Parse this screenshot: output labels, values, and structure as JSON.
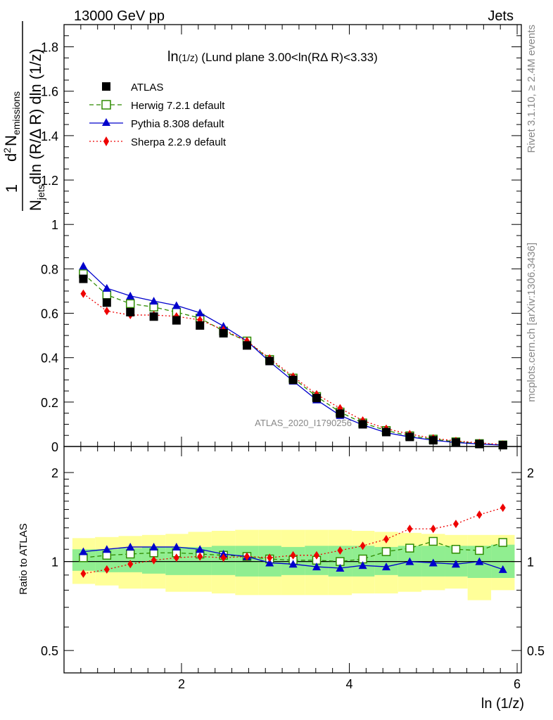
{
  "header": {
    "left": "13000 GeV pp",
    "right": "Jets",
    "side_rivet": "Rivet 3.1.10, ≥ 2.4M events",
    "side_mcplots": "mcplots.cern.ch [arXiv:1306.3436]",
    "analysis_id": "ATLAS_2020_I1790256"
  },
  "plot_title": {
    "main": "ln",
    "main_sub": "(1/z)",
    "rest": " (Lund plane 3.00<ln(RΔ R)<3.33)"
  },
  "ylabel_top": {
    "line1": "1",
    "num_d": "d",
    "num_exp": "2",
    "num_N": "N",
    "num_sub": "emissions",
    "den_N": "N",
    "den_sub": "jets",
    "den_rest": "dln (R/Δ R) dln (1/z)"
  },
  "ylabel_ratio": "Ratio to ATLAS",
  "xlabel": "ln (1/z)",
  "colors": {
    "data": "#000000",
    "herwig": "#2e8b00",
    "pythia": "#0000cc",
    "sherpa": "#ee0000",
    "band_inner": "#90ee90",
    "band_outer": "#ffff99"
  },
  "chart_data": [
    {
      "type": "line",
      "panel": "main",
      "xlim": [
        0.6,
        6.05
      ],
      "ylim": [
        0,
        1.9
      ],
      "xticks": [
        2,
        4,
        6
      ],
      "yticks": [
        0,
        0.2,
        0.4,
        0.6,
        0.8,
        1,
        1.2,
        1.4,
        1.6,
        1.8
      ],
      "ytick_labels": [
        "0",
        "0.2",
        "0.4",
        "0.6",
        "0.8",
        "1",
        "1.2",
        "1.4",
        "1.6",
        "1.8"
      ],
      "legend_position": "top-left",
      "x": [
        0.83,
        1.11,
        1.39,
        1.67,
        1.94,
        2.22,
        2.5,
        2.78,
        3.05,
        3.33,
        3.61,
        3.89,
        4.16,
        4.44,
        4.72,
        5.0,
        5.27,
        5.55,
        5.83
      ],
      "series": [
        {
          "name": "ATLAS",
          "key": "data",
          "marker": "square",
          "values": [
            0.755,
            0.648,
            0.605,
            0.585,
            0.568,
            0.545,
            0.51,
            0.455,
            0.385,
            0.3,
            0.218,
            0.148,
            0.1,
            0.065,
            0.043,
            0.028,
            0.018,
            0.011,
            0.006
          ]
        },
        {
          "name": "Herwig 7.2.1 default",
          "key": "herwig",
          "marker": "open-square",
          "dash": "6,4",
          "values": [
            0.778,
            0.683,
            0.643,
            0.628,
            0.605,
            0.578,
            0.52,
            0.475,
            0.392,
            0.308,
            0.225,
            0.155,
            0.106,
            0.072,
            0.048,
            0.033,
            0.021,
            0.013,
            0.007
          ]
        },
        {
          "name": "Pythia 8.308 default",
          "key": "pythia",
          "marker": "triangle",
          "values": [
            0.813,
            0.713,
            0.678,
            0.655,
            0.635,
            0.602,
            0.542,
            0.475,
            0.382,
            0.295,
            0.21,
            0.14,
            0.097,
            0.062,
            0.043,
            0.028,
            0.018,
            0.011,
            0.006
          ]
        },
        {
          "name": "Sherpa 2.2.9 default",
          "key": "sherpa",
          "marker": "diamond",
          "dash": "2,3",
          "values": [
            0.688,
            0.61,
            0.592,
            0.592,
            0.586,
            0.57,
            0.525,
            0.475,
            0.397,
            0.315,
            0.235,
            0.172,
            0.117,
            0.08,
            0.056,
            0.037,
            0.025,
            0.016,
            0.009
          ]
        }
      ]
    },
    {
      "type": "line",
      "panel": "ratio",
      "ylabel": "Ratio to ATLAS",
      "xlabel": "ln (1/z)",
      "yscale": "log",
      "ylim": [
        0.42,
        2.45
      ],
      "yticks": [
        0.5,
        1,
        2
      ],
      "ytick_labels": [
        "0.5",
        "1",
        "2"
      ],
      "xticks": [
        2,
        4,
        6
      ],
      "xtick_labels": [
        "2",
        "4",
        "6"
      ],
      "x": [
        0.83,
        1.11,
        1.39,
        1.67,
        1.94,
        2.22,
        2.5,
        2.78,
        3.05,
        3.33,
        3.61,
        3.89,
        4.16,
        4.44,
        4.72,
        5.0,
        5.27,
        5.55,
        5.83
      ],
      "band_edges": [
        0.7,
        0.97,
        1.25,
        1.53,
        1.81,
        2.08,
        2.36,
        2.64,
        2.92,
        3.19,
        3.47,
        3.75,
        4.03,
        4.3,
        4.58,
        4.86,
        5.14,
        5.41,
        5.69,
        5.97
      ],
      "band_inner": [
        [
          0.93,
          1.1
        ],
        [
          0.92,
          1.1
        ],
        [
          0.92,
          1.11
        ],
        [
          0.91,
          1.12
        ],
        [
          0.9,
          1.12
        ],
        [
          0.9,
          1.12
        ],
        [
          0.9,
          1.13
        ],
        [
          0.89,
          1.13
        ],
        [
          0.89,
          1.13
        ],
        [
          0.9,
          1.12
        ],
        [
          0.9,
          1.13
        ],
        [
          0.89,
          1.13
        ],
        [
          0.89,
          1.13
        ],
        [
          0.9,
          1.12
        ],
        [
          0.89,
          1.13
        ],
        [
          0.89,
          1.13
        ],
        [
          0.89,
          1.13
        ],
        [
          0.88,
          1.13
        ],
        [
          0.88,
          1.14
        ]
      ],
      "band_outer": [
        [
          0.84,
          1.2
        ],
        [
          0.83,
          1.21
        ],
        [
          0.81,
          1.22
        ],
        [
          0.81,
          1.23
        ],
        [
          0.79,
          1.24
        ],
        [
          0.79,
          1.26
        ],
        [
          0.78,
          1.27
        ],
        [
          0.77,
          1.28
        ],
        [
          0.77,
          1.28
        ],
        [
          0.77,
          1.28
        ],
        [
          0.77,
          1.28
        ],
        [
          0.77,
          1.28
        ],
        [
          0.78,
          1.27
        ],
        [
          0.78,
          1.26
        ],
        [
          0.79,
          1.25
        ],
        [
          0.8,
          1.24
        ],
        [
          0.81,
          1.23
        ],
        [
          0.74,
          1.23
        ],
        [
          0.8,
          1.23
        ]
      ],
      "series": [
        {
          "name": "Herwig 7.2.1 default",
          "key": "herwig",
          "marker": "open-square",
          "dash": "6,4",
          "values": [
            1.03,
            1.05,
            1.06,
            1.07,
            1.07,
            1.06,
            1.05,
            1.04,
            1.02,
            1.01,
            1.01,
            1.0,
            1.02,
            1.08,
            1.11,
            1.17,
            1.1,
            1.09,
            1.16
          ]
        },
        {
          "name": "Pythia 8.308 default",
          "key": "pythia",
          "marker": "triangle",
          "values": [
            1.08,
            1.1,
            1.12,
            1.12,
            1.12,
            1.1,
            1.06,
            1.04,
            0.99,
            0.98,
            0.96,
            0.95,
            0.97,
            0.96,
            1.0,
            0.99,
            0.98,
            1.0,
            0.94
          ]
        },
        {
          "name": "Sherpa 2.2.9 default",
          "key": "sherpa",
          "marker": "diamond",
          "dash": "2,3",
          "values": [
            0.91,
            0.94,
            0.98,
            1.01,
            1.03,
            1.04,
            1.03,
            1.04,
            1.03,
            1.05,
            1.05,
            1.09,
            1.13,
            1.19,
            1.29,
            1.29,
            1.34,
            1.44,
            1.52
          ]
        }
      ]
    }
  ]
}
